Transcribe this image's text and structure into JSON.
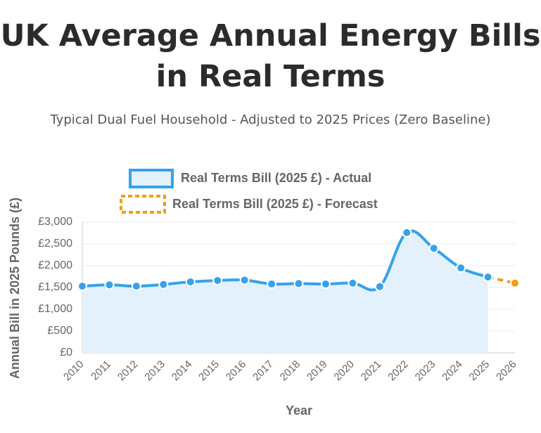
{
  "chart_data": {
    "type": "line",
    "title": "UK Average Annual Energy Bills in Real Terms",
    "subtitle": "Typical Dual Fuel Household - Adjusted to 2025 Prices (Zero Baseline)",
    "x_label": "Year",
    "y_label": "Annual Bill in 2025 Pounds (£)",
    "categories": [
      "2010",
      "2011",
      "2012",
      "2013",
      "2014",
      "2015",
      "2016",
      "2017",
      "2018",
      "2019",
      "2020",
      "2021",
      "2022",
      "2023",
      "2024",
      "2025",
      "2026"
    ],
    "series": [
      {
        "name": "Real Terms Bill (2025 £) - Actual",
        "color": "#36a2eb",
        "fill": "#e3f1fc",
        "dashed": false,
        "values": [
          1530,
          1560,
          1530,
          1570,
          1630,
          1660,
          1670,
          1580,
          1590,
          1580,
          1600,
          1520,
          2760,
          2400,
          1950,
          1740,
          null
        ]
      },
      {
        "name": "Real Terms Bill (2025 £) - Forecast",
        "color": "#f39c12",
        "dashed": true,
        "values": [
          null,
          null,
          null,
          null,
          null,
          null,
          null,
          null,
          null,
          null,
          null,
          null,
          null,
          null,
          null,
          1740,
          1600
        ]
      }
    ],
    "ylim": [
      0,
      3000
    ],
    "yticks": [
      {
        "value": 0,
        "label": "£0"
      },
      {
        "value": 500,
        "label": "£500"
      },
      {
        "value": 1000,
        "label": "£1,000"
      },
      {
        "value": 1500,
        "label": "£1,500"
      },
      {
        "value": 2000,
        "label": "£2,000"
      },
      {
        "value": 2500,
        "label": "£2,500"
      },
      {
        "value": 3000,
        "label": "£3,000"
      }
    ],
    "grid": true
  }
}
